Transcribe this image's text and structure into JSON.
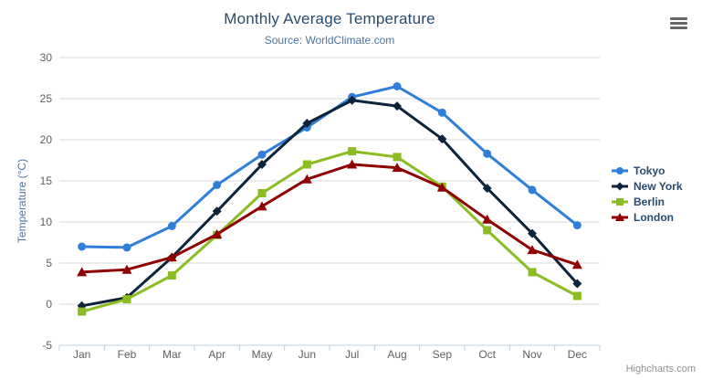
{
  "chart_data": {
    "type": "line",
    "title": "Monthly Average Temperature",
    "subtitle": "Source: WorldClimate.com",
    "xlabel": "",
    "ylabel": "Temperature (°C)",
    "categories": [
      "Jan",
      "Feb",
      "Mar",
      "Apr",
      "May",
      "Jun",
      "Jul",
      "Aug",
      "Sep",
      "Oct",
      "Nov",
      "Dec"
    ],
    "ylim": [
      -5,
      30
    ],
    "yticks": [
      -5,
      0,
      5,
      10,
      15,
      20,
      25,
      30
    ],
    "grid": true,
    "legend_position": "right",
    "series": [
      {
        "name": "Tokyo",
        "color": "#2f7ed8",
        "marker": "circle",
        "values": [
          7.0,
          6.9,
          9.5,
          14.5,
          18.2,
          21.5,
          25.2,
          26.5,
          23.3,
          18.3,
          13.9,
          9.6
        ]
      },
      {
        "name": "New York",
        "color": "#0d233a",
        "marker": "diamond",
        "values": [
          -0.2,
          0.8,
          5.7,
          11.3,
          17.0,
          22.0,
          24.8,
          24.1,
          20.1,
          14.1,
          8.6,
          2.5
        ]
      },
      {
        "name": "Berlin",
        "color": "#8bbc21",
        "marker": "square",
        "values": [
          -0.9,
          0.6,
          3.5,
          8.4,
          13.5,
          17.0,
          18.6,
          17.9,
          14.3,
          9.0,
          3.9,
          1.0
        ]
      },
      {
        "name": "London",
        "color": "#910000",
        "marker": "triangle",
        "values": [
          3.9,
          4.2,
          5.7,
          8.5,
          11.9,
          15.2,
          17.0,
          16.6,
          14.2,
          10.3,
          6.6,
          4.8
        ]
      }
    ]
  },
  "credits": {
    "label": "Highcharts.com"
  },
  "export_menu": {
    "icon": "hamburger-menu-icon"
  },
  "theme": {
    "title_color": "#274b6d",
    "subtitle_color": "#4d759e",
    "axis_title_color": "#4d759e",
    "axis_label_color": "#606060",
    "gridline_color": "#d8d8d8",
    "axis_line_color": "#c0d0e0",
    "legend_text_color": "#274b6d",
    "credits_color": "#909090",
    "background": "#ffffff"
  }
}
